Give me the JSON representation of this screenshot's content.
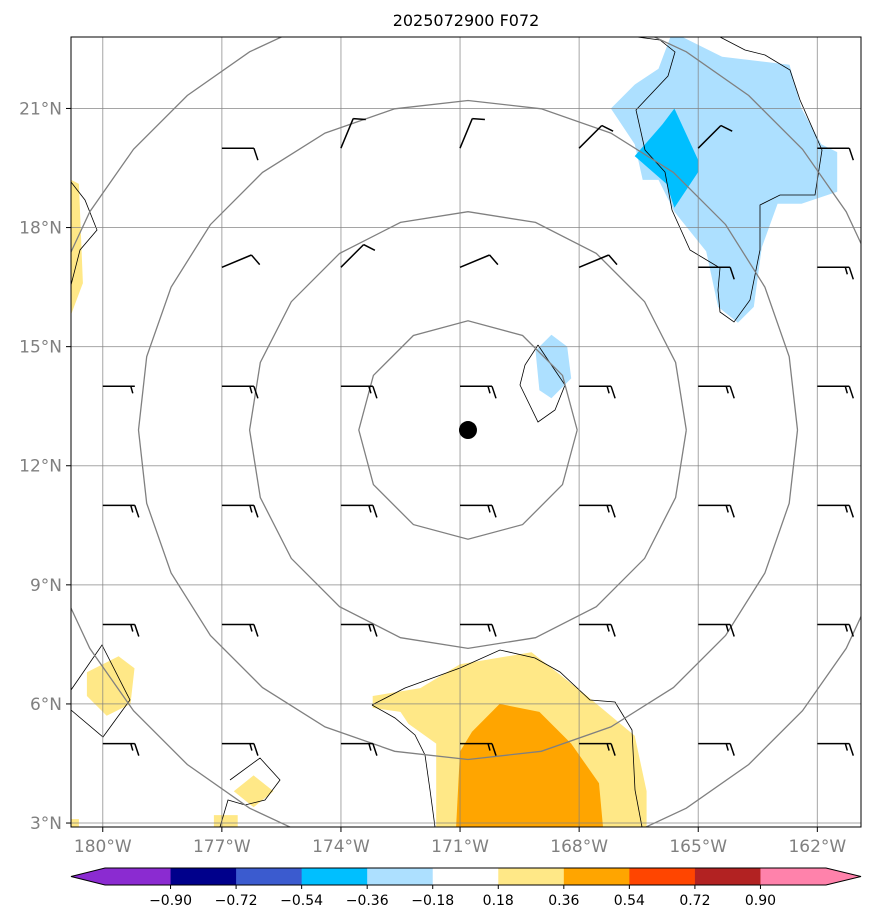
{
  "chart_data": {
    "type": "map",
    "title": "2025072900 F072",
    "projection": "equirectangular",
    "xlim": [
      -180.8,
      -160.9
    ],
    "ylim": [
      2.9,
      22.8
    ],
    "x_ticks": [
      -180,
      -177,
      -174,
      -171,
      -168,
      -165,
      -162
    ],
    "x_tick_labels": [
      "180°W",
      "177°W",
      "174°W",
      "171°W",
      "168°W",
      "165°W",
      "162°W"
    ],
    "y_ticks": [
      3,
      6,
      9,
      12,
      15,
      18,
      21
    ],
    "y_tick_labels": [
      "3°N",
      "6°N",
      "9°N",
      "12°N",
      "15°N",
      "18°N",
      "21°N"
    ],
    "grid": true,
    "center_marker": {
      "lon": -170.8,
      "lat": 12.9
    },
    "range_rings_deg": [
      2.75,
      5.5,
      8.3,
      11.0
    ],
    "wind_barb_grid": {
      "lons": [
        -180,
        -177,
        -174,
        -171,
        -168,
        -165,
        -162
      ],
      "lats": [
        20,
        17,
        14,
        11,
        8,
        5
      ]
    },
    "wind_barbs": [
      {
        "lon": -177,
        "lat": 20,
        "dir": "N",
        "knots": 10
      },
      {
        "lon": -174,
        "lat": 20,
        "dir": "NNE",
        "knots": 10
      },
      {
        "lon": -171,
        "lat": 20,
        "dir": "NNE",
        "knots": 10
      },
      {
        "lon": -168,
        "lat": 20,
        "dir": "NE",
        "knots": 10
      },
      {
        "lon": -165,
        "lat": 20,
        "dir": "NE",
        "knots": 10
      },
      {
        "lon": -162,
        "lat": 20,
        "dir": "E",
        "knots": 10
      },
      {
        "lon": -177,
        "lat": 17,
        "dir": "ENE",
        "knots": 10
      },
      {
        "lon": -174,
        "lat": 17,
        "dir": "NE",
        "knots": 10
      },
      {
        "lon": -171,
        "lat": 17,
        "dir": "ENE",
        "knots": 10
      },
      {
        "lon": -168,
        "lat": 17,
        "dir": "ENE",
        "knots": 10
      },
      {
        "lon": -165,
        "lat": 17,
        "dir": "E",
        "knots": 10
      },
      {
        "lon": -162,
        "lat": 17,
        "dir": "E",
        "knots": 15
      },
      {
        "lon": -180,
        "lat": 14,
        "dir": "E",
        "knots": 5
      },
      {
        "lon": -177,
        "lat": 14,
        "dir": "E",
        "knots": 15
      },
      {
        "lon": -174,
        "lat": 14,
        "dir": "E",
        "knots": 15
      },
      {
        "lon": -171,
        "lat": 14,
        "dir": "E",
        "knots": 15
      },
      {
        "lon": -168,
        "lat": 14,
        "dir": "E",
        "knots": 15
      },
      {
        "lon": -165,
        "lat": 14,
        "dir": "E",
        "knots": 15
      },
      {
        "lon": -162,
        "lat": 14,
        "dir": "E",
        "knots": 15
      },
      {
        "lon": -180,
        "lat": 11,
        "dir": "E",
        "knots": 15
      },
      {
        "lon": -177,
        "lat": 11,
        "dir": "E",
        "knots": 15
      },
      {
        "lon": -174,
        "lat": 11,
        "dir": "E",
        "knots": 15
      },
      {
        "lon": -171,
        "lat": 11,
        "dir": "E",
        "knots": 15
      },
      {
        "lon": -168,
        "lat": 11,
        "dir": "E",
        "knots": 15
      },
      {
        "lon": -165,
        "lat": 11,
        "dir": "E",
        "knots": 15
      },
      {
        "lon": -162,
        "lat": 11,
        "dir": "E",
        "knots": 15
      },
      {
        "lon": -180,
        "lat": 8,
        "dir": "E",
        "knots": 15
      },
      {
        "lon": -177,
        "lat": 8,
        "dir": "E",
        "knots": 15
      },
      {
        "lon": -174,
        "lat": 8,
        "dir": "E",
        "knots": 15
      },
      {
        "lon": -171,
        "lat": 8,
        "dir": "E",
        "knots": 15
      },
      {
        "lon": -168,
        "lat": 8,
        "dir": "E",
        "knots": 15
      },
      {
        "lon": -165,
        "lat": 8,
        "dir": "E",
        "knots": 15
      },
      {
        "lon": -162,
        "lat": 8,
        "dir": "E",
        "knots": 15
      },
      {
        "lon": -180,
        "lat": 5,
        "dir": "E",
        "knots": 15
      },
      {
        "lon": -177,
        "lat": 5,
        "dir": "E",
        "knots": 15
      },
      {
        "lon": -174,
        "lat": 5,
        "dir": "E",
        "knots": 15
      },
      {
        "lon": -171,
        "lat": 5,
        "dir": "E",
        "knots": 15
      },
      {
        "lon": -168,
        "lat": 5,
        "dir": "E",
        "knots": 15
      },
      {
        "lon": -165,
        "lat": 5,
        "dir": "E",
        "knots": 15
      },
      {
        "lon": -162,
        "lat": 5,
        "dir": "E",
        "knots": 15
      }
    ],
    "filled_regions": [
      {
        "level": "0.18-0.36",
        "color": "#FFE887",
        "points": [
          [
            -171,
            7
          ],
          [
            -169.2,
            7.3
          ],
          [
            -167.8,
            6.2
          ],
          [
            -166.6,
            5.2
          ],
          [
            -166.3,
            3.8
          ],
          [
            -166.3,
            2.9
          ],
          [
            -171.6,
            2.9
          ],
          [
            -171.6,
            5.0
          ],
          [
            -172.3,
            5.5
          ],
          [
            -172.5,
            5.8
          ],
          [
            -173.2,
            5.9
          ],
          [
            -173.2,
            6.2
          ],
          [
            -172,
            6.4
          ]
        ]
      },
      {
        "level": "0.36-0.54",
        "color": "#FFA500",
        "points": [
          [
            -170.0,
            6.0
          ],
          [
            -169.0,
            5.8
          ],
          [
            -168.2,
            5.0
          ],
          [
            -167.5,
            4.0
          ],
          [
            -167.4,
            2.9
          ],
          [
            -171.1,
            2.9
          ],
          [
            -171.0,
            4.8
          ],
          [
            -170.7,
            5.3
          ]
        ]
      },
      {
        "level": "0.18-0.36",
        "color": "#FFE887",
        "points": [
          [
            -180.4,
            6.8
          ],
          [
            -179.6,
            7.2
          ],
          [
            -179.2,
            6.9
          ],
          [
            -179.3,
            6.0
          ],
          [
            -179.9,
            5.7
          ],
          [
            -180.4,
            6.2
          ]
        ]
      },
      {
        "level": "0.18-0.36",
        "color": "#FFE887",
        "points": [
          [
            -180.8,
            19.2
          ],
          [
            -180.6,
            19.1
          ],
          [
            -180.5,
            16.6
          ],
          [
            -180.8,
            15.8
          ]
        ]
      },
      {
        "level": "0.18-0.36",
        "color": "#FFE887",
        "points": [
          [
            -176.2,
            4.2
          ],
          [
            -175.7,
            3.8
          ],
          [
            -176.2,
            3.4
          ],
          [
            -176.7,
            3.8
          ]
        ]
      },
      {
        "level": "0.18-0.36",
        "color": "#FFE887",
        "points": [
          [
            -177.2,
            3.2
          ],
          [
            -176.6,
            3.2
          ],
          [
            -176.6,
            2.9
          ],
          [
            -177.2,
            2.9
          ]
        ]
      },
      {
        "level": "0.18-0.36",
        "color": "#FFE887",
        "points": [
          [
            -180.8,
            3.1
          ],
          [
            -180.6,
            3.1
          ],
          [
            -180.6,
            2.9
          ],
          [
            -180.8,
            2.9
          ]
        ]
      },
      {
        "level": "-0.36--0.18",
        "color": "#ADE0FF",
        "points": [
          [
            -165.4,
            22.8
          ],
          [
            -164.4,
            22.3
          ],
          [
            -162.7,
            22.1
          ],
          [
            -162.4,
            21.0
          ],
          [
            -161.9,
            20.1
          ],
          [
            -161.5,
            19.9
          ],
          [
            -161.5,
            18.9
          ],
          [
            -162.4,
            18.6
          ],
          [
            -163.0,
            18.6
          ],
          [
            -163.4,
            17.5
          ],
          [
            -163.6,
            16.0
          ],
          [
            -164.0,
            15.6
          ],
          [
            -164.5,
            16.0
          ],
          [
            -164.8,
            17.4
          ],
          [
            -165.6,
            18.4
          ],
          [
            -166.0,
            19.2
          ],
          [
            -166.4,
            19.2
          ],
          [
            -166.6,
            20.1
          ],
          [
            -167.2,
            21.0
          ],
          [
            -166.6,
            21.6
          ],
          [
            -166.0,
            22.0
          ],
          [
            -165.7,
            22.8
          ]
        ]
      },
      {
        "level": "-0.54--0.36",
        "color": "#00BFFF",
        "points": [
          [
            -165.6,
            21.0
          ],
          [
            -165.0,
            19.7
          ],
          [
            -165.0,
            19.4
          ],
          [
            -165.6,
            18.5
          ],
          [
            -165.8,
            19.1
          ],
          [
            -166.6,
            19.8
          ],
          [
            -165.9,
            20.6
          ]
        ]
      },
      {
        "level": "-0.36--0.18",
        "color": "#ADE0FF",
        "points": [
          [
            -168.7,
            15.3
          ],
          [
            -168.3,
            15.0
          ],
          [
            -168.2,
            14.2
          ],
          [
            -168.7,
            13.7
          ],
          [
            -169.0,
            13.9
          ],
          [
            -169.1,
            14.9
          ]
        ]
      }
    ],
    "colorbar": {
      "boundaries": [
        -0.9,
        -0.72,
        -0.54,
        -0.36,
        -0.18,
        0.18,
        0.36,
        0.54,
        0.72,
        0.9
      ],
      "tick_labels": [
        "−0.90",
        "−0.72",
        "−0.54",
        "−0.36",
        "−0.18",
        "0.18",
        "0.36",
        "0.54",
        "0.72",
        "0.90"
      ],
      "colors": [
        "#8B2BD1",
        "#00008B",
        "#3B5BCF",
        "#00BFFF",
        "#ADE0FF",
        "#FFFFFF",
        "#FFE887",
        "#FFA500",
        "#FF4500",
        "#B22222",
        "#FF82AB"
      ],
      "extend": "both"
    }
  }
}
